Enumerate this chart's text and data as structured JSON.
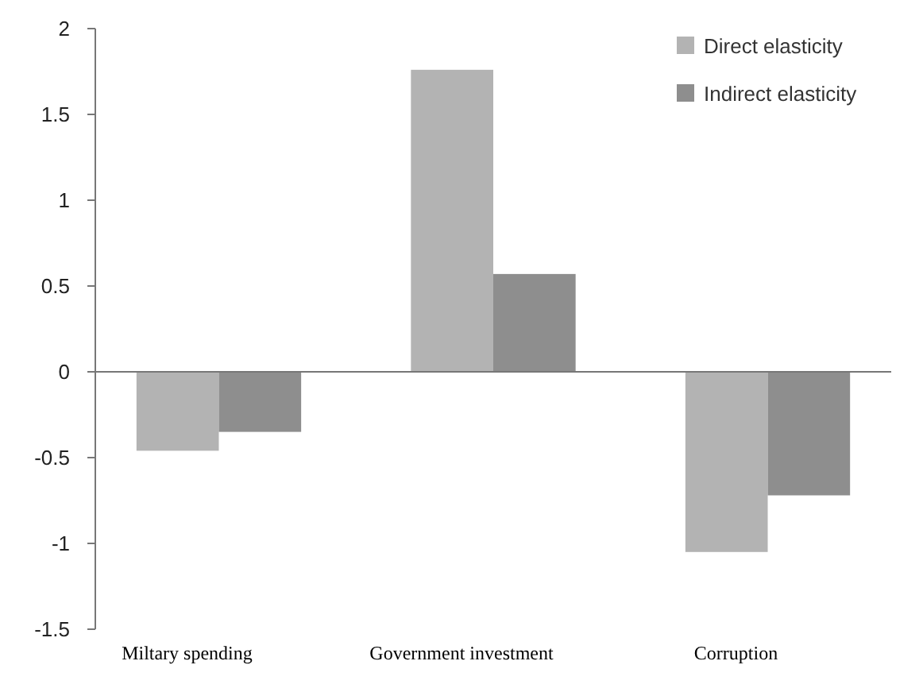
{
  "chart_data": {
    "type": "bar",
    "categories": [
      "Miltary spending",
      "Government investment",
      "Corruption"
    ],
    "series": [
      {
        "name": "Direct elasticity",
        "color": "#b3b3b3",
        "values": [
          -0.46,
          1.76,
          -1.05
        ]
      },
      {
        "name": "Indirect elasticity",
        "color": "#8e8e8e",
        "values": [
          -0.35,
          0.57,
          -0.72
        ]
      }
    ],
    "ylim": [
      -1.5,
      2
    ],
    "yticks": [
      -1.5,
      -1,
      -0.5,
      0,
      0.5,
      1,
      1.5,
      2
    ],
    "legend": "top right"
  }
}
